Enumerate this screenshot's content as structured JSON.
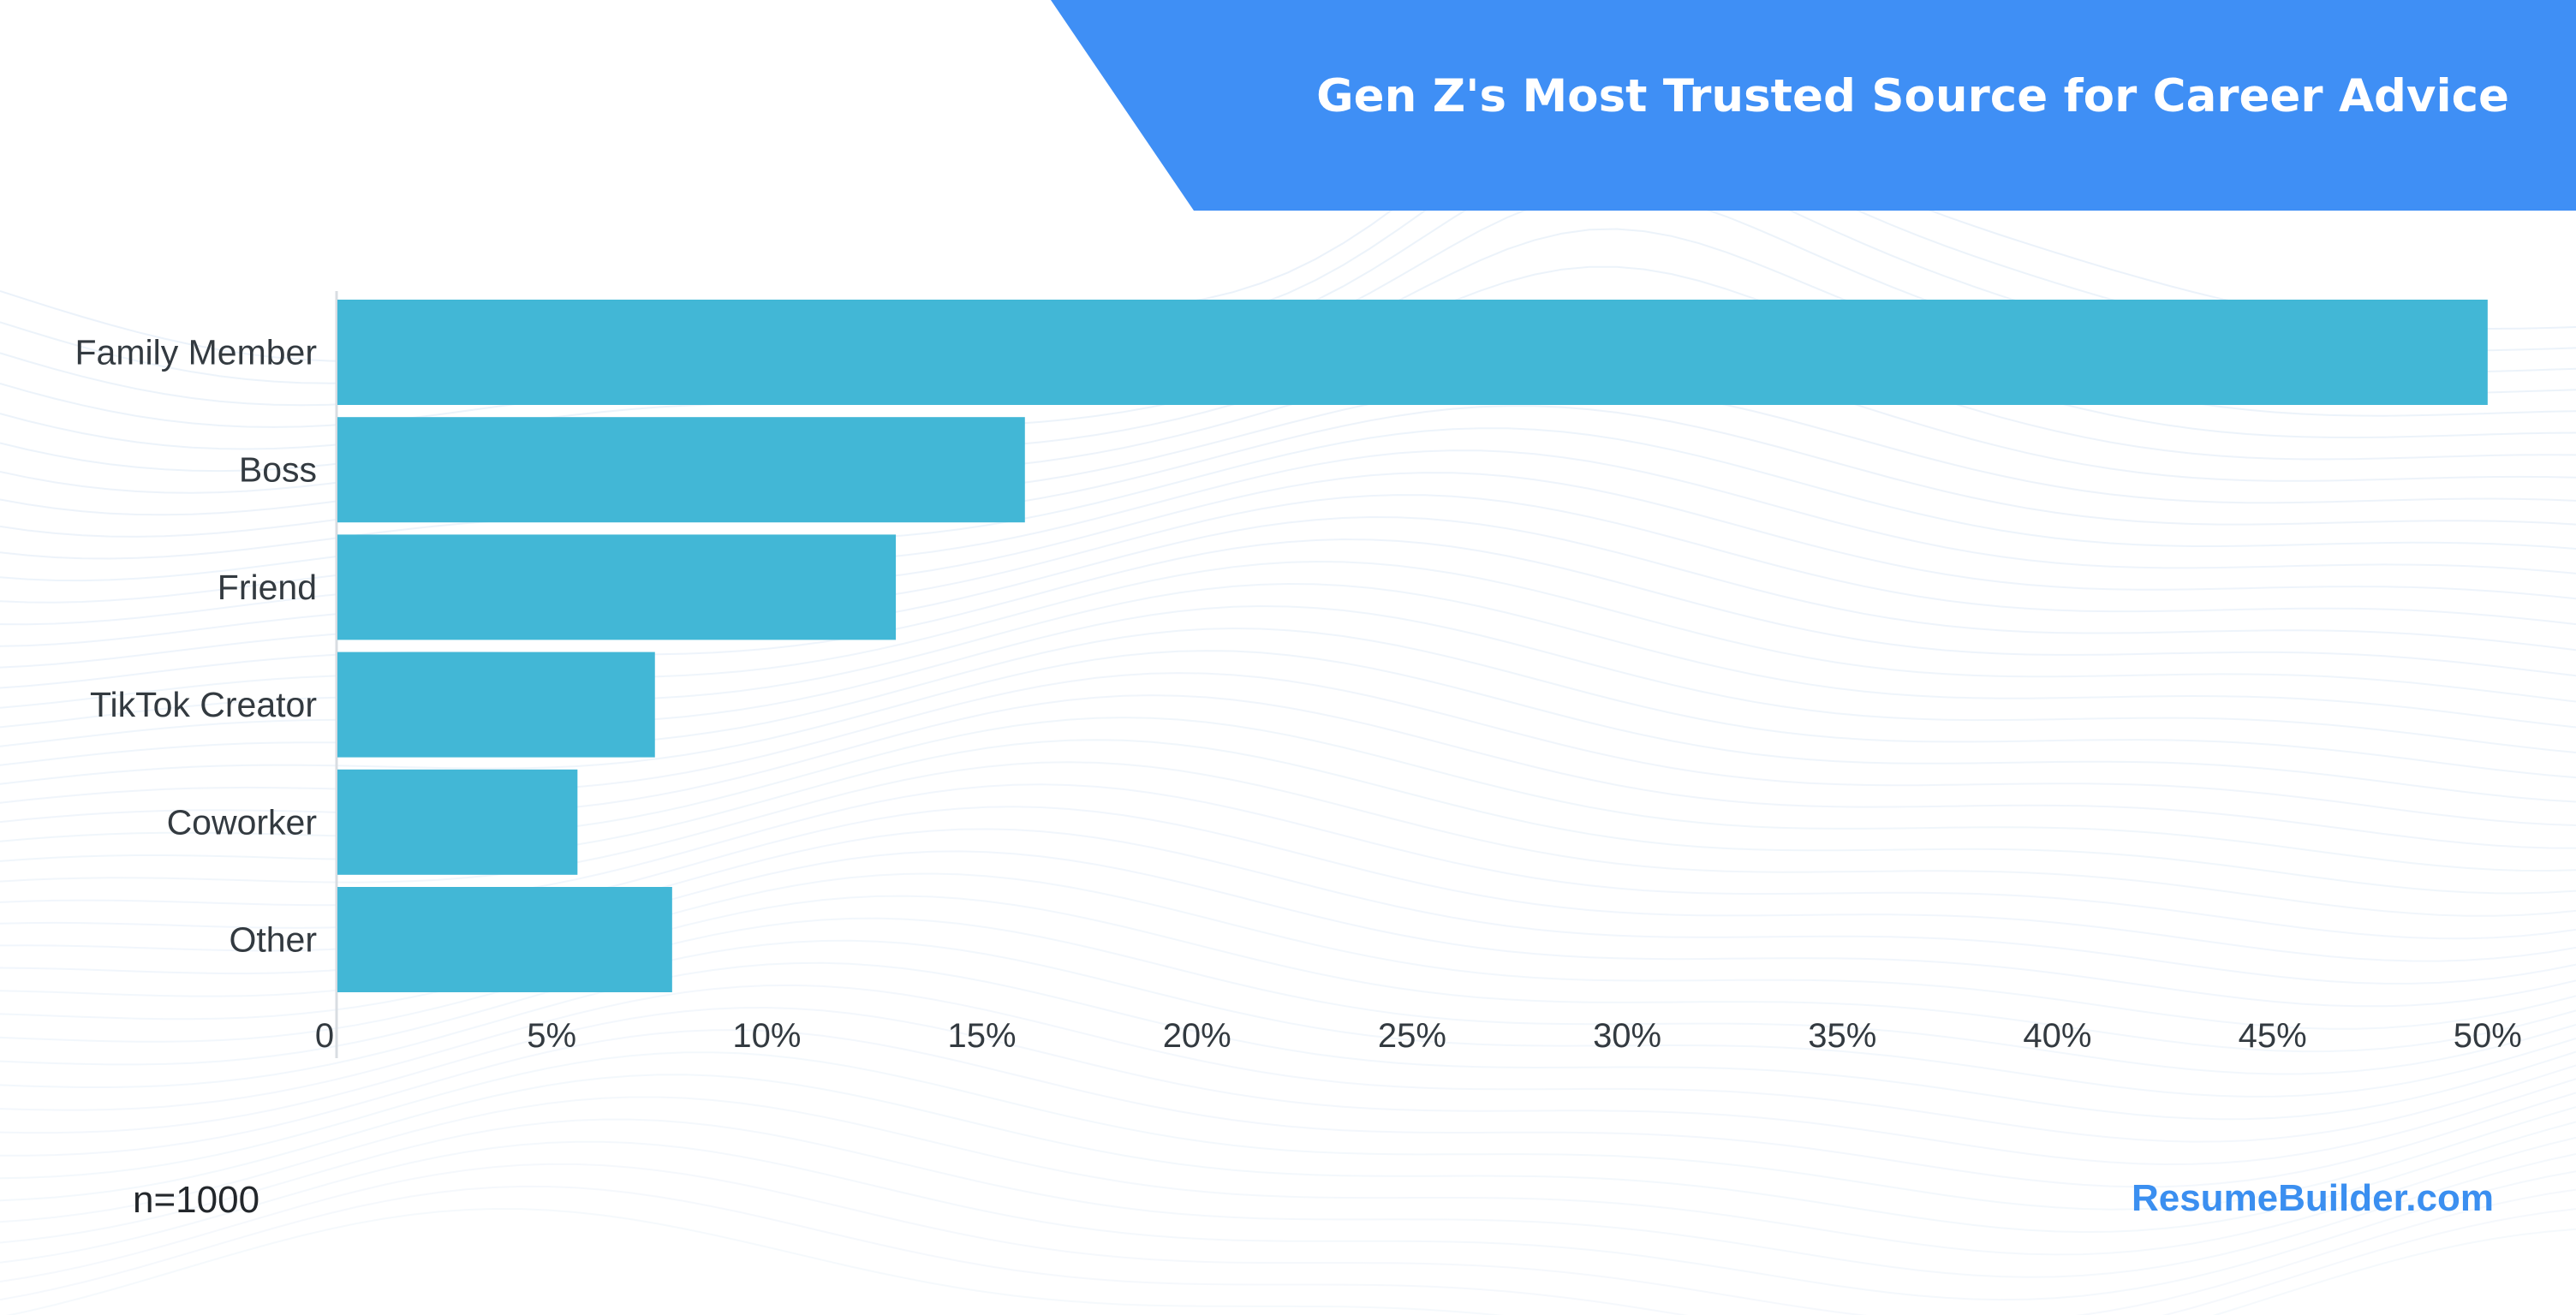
{
  "colors": {
    "banner": "#3f8ff5",
    "bar": "#42b7d6",
    "brand": "#3b8ff0",
    "text": "#333a40",
    "background_waves": "#dbe8f6"
  },
  "chart_data": {
    "type": "bar",
    "orientation": "horizontal",
    "title": "Gen Z's Most Trusted Source for Career Advice",
    "categories": [
      "Family Member",
      "Boss",
      "Friend",
      "TikTok Creator",
      "Coworker",
      "Other"
    ],
    "values": [
      50,
      16,
      13,
      7.4,
      5.6,
      7.8
    ],
    "value_unit": "%",
    "xlim": [
      0,
      50
    ],
    "xticks": [
      0,
      5,
      10,
      15,
      20,
      25,
      30,
      35,
      40,
      45,
      50
    ],
    "xtick_labels": [
      "0",
      "5%",
      "10%",
      "15%",
      "20%",
      "25%",
      "30%",
      "35%",
      "40%",
      "45%",
      "50%"
    ],
    "xlabel": "",
    "ylabel": "",
    "grid": false,
    "legend": "none"
  },
  "footer": {
    "sample_size": "n=1000",
    "brand": "ResumeBuilder.com"
  }
}
